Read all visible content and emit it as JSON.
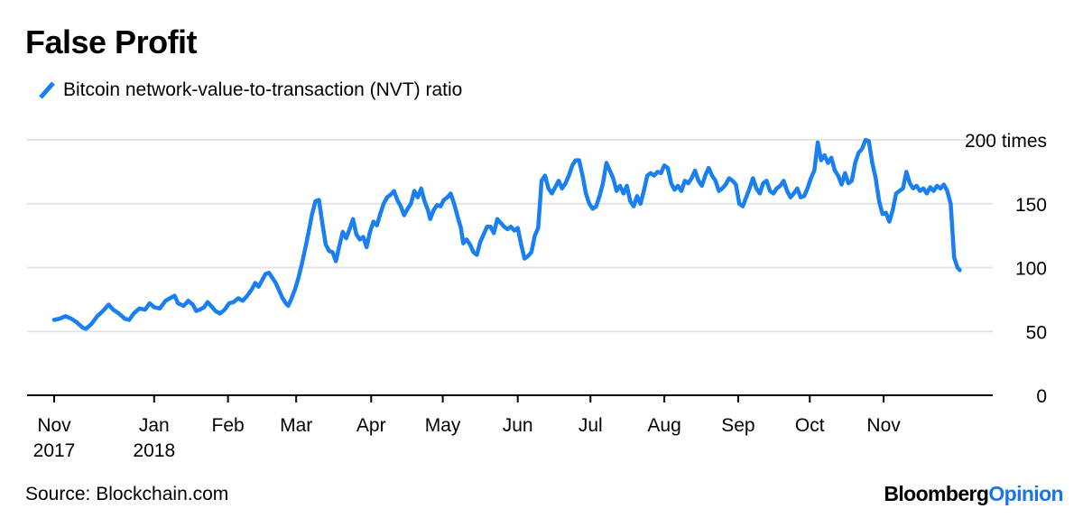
{
  "chart_data": {
    "type": "line",
    "title": "False Profit",
    "series": [
      {
        "name": "Bitcoin network-value-to-transaction (NVT) ratio",
        "color": "#1a7ff0",
        "points": [
          [
            0,
            59
          ],
          [
            5,
            60
          ],
          [
            10,
            62
          ],
          [
            15,
            60
          ],
          [
            20,
            57
          ],
          [
            25,
            53
          ],
          [
            28,
            52
          ],
          [
            33,
            56
          ],
          [
            38,
            62
          ],
          [
            43,
            66
          ],
          [
            48,
            71
          ],
          [
            52,
            67
          ],
          [
            57,
            64
          ],
          [
            62,
            60
          ],
          [
            66,
            59
          ],
          [
            70,
            64
          ],
          [
            75,
            68
          ],
          [
            80,
            67
          ],
          [
            84,
            72
          ],
          [
            88,
            69
          ],
          [
            93,
            68
          ],
          [
            98,
            74
          ],
          [
            102,
            76
          ],
          [
            106,
            78
          ],
          [
            109,
            72
          ],
          [
            114,
            70
          ],
          [
            118,
            74
          ],
          [
            122,
            71
          ],
          [
            125,
            66
          ],
          [
            128,
            67
          ],
          [
            132,
            69
          ],
          [
            135,
            73
          ],
          [
            138,
            70
          ],
          [
            142,
            66
          ],
          [
            146,
            64
          ],
          [
            150,
            67
          ],
          [
            154,
            72
          ],
          [
            158,
            73
          ],
          [
            162,
            76
          ],
          [
            166,
            74
          ],
          [
            170,
            78
          ],
          [
            174,
            83
          ],
          [
            177,
            88
          ],
          [
            180,
            85
          ],
          [
            183,
            90
          ],
          [
            186,
            95
          ],
          [
            189,
            96
          ],
          [
            192,
            92
          ],
          [
            195,
            88
          ],
          [
            198,
            82
          ],
          [
            201,
            76
          ],
          [
            204,
            72
          ],
          [
            206,
            70
          ],
          [
            209,
            76
          ],
          [
            212,
            83
          ],
          [
            215,
            92
          ],
          [
            218,
            103
          ],
          [
            221,
            115
          ],
          [
            224,
            128
          ],
          [
            227,
            142
          ],
          [
            230,
            152
          ],
          [
            233,
            153
          ],
          [
            236,
            135
          ],
          [
            239,
            118
          ],
          [
            242,
            113
          ],
          [
            245,
            112
          ],
          [
            248,
            105
          ],
          [
            251,
            117
          ],
          [
            254,
            128
          ],
          [
            257,
            123
          ],
          [
            260,
            130
          ],
          [
            263,
            138
          ],
          [
            266,
            126
          ],
          [
            269,
            122
          ],
          [
            272,
            124
          ],
          [
            275,
            116
          ],
          [
            278,
            128
          ],
          [
            281,
            136
          ],
          [
            284,
            133
          ],
          [
            287,
            142
          ],
          [
            290,
            150
          ],
          [
            293,
            155
          ],
          [
            296,
            157
          ],
          [
            299,
            160
          ],
          [
            302,
            153
          ],
          [
            305,
            148
          ],
          [
            308,
            141
          ],
          [
            311,
            146
          ],
          [
            314,
            150
          ],
          [
            317,
            160
          ],
          [
            320,
            155
          ],
          [
            323,
            162
          ],
          [
            326,
            152
          ],
          [
            329,
            145
          ],
          [
            331,
            138
          ],
          [
            334,
            145
          ],
          [
            337,
            149
          ],
          [
            340,
            148
          ],
          [
            343,
            153
          ],
          [
            346,
            155
          ],
          [
            349,
            158
          ],
          [
            352,
            150
          ],
          [
            355,
            140
          ],
          [
            358,
            131
          ],
          [
            360,
            119
          ],
          [
            363,
            122
          ],
          [
            366,
            118
          ],
          [
            369,
            112
          ],
          [
            372,
            110
          ],
          [
            375,
            120
          ],
          [
            378,
            126
          ],
          [
            381,
            132
          ],
          [
            384,
            132
          ],
          [
            387,
            127
          ],
          [
            390,
            138
          ],
          [
            393,
            135
          ],
          [
            396,
            132
          ],
          [
            399,
            130
          ],
          [
            402,
            132
          ],
          [
            405,
            129
          ],
          [
            408,
            131
          ],
          [
            411,
            118
          ],
          [
            414,
            107
          ],
          [
            417,
            109
          ],
          [
            420,
            112
          ],
          [
            423,
            125
          ],
          [
            426,
            131
          ],
          [
            429,
            168
          ],
          [
            432,
            172
          ],
          [
            435,
            162
          ],
          [
            438,
            158
          ],
          [
            441,
            163
          ],
          [
            444,
            168
          ],
          [
            447,
            162
          ],
          [
            450,
            166
          ],
          [
            453,
            172
          ],
          [
            456,
            180
          ],
          [
            459,
            184
          ],
          [
            462,
            184
          ],
          [
            465,
            172
          ],
          [
            468,
            158
          ],
          [
            471,
            150
          ],
          [
            474,
            146
          ],
          [
            477,
            148
          ],
          [
            480,
            156
          ],
          [
            483,
            166
          ],
          [
            486,
            182
          ],
          [
            489,
            176
          ],
          [
            492,
            170
          ],
          [
            495,
            160
          ],
          [
            498,
            164
          ],
          [
            501,
            158
          ],
          [
            504,
            164
          ],
          [
            507,
            152
          ],
          [
            510,
            148
          ],
          [
            513,
            156
          ],
          [
            516,
            150
          ],
          [
            519,
            160
          ],
          [
            522,
            172
          ],
          [
            525,
            174
          ],
          [
            528,
            172
          ],
          [
            531,
            175
          ],
          [
            534,
            174
          ],
          [
            537,
            180
          ],
          [
            540,
            178
          ],
          [
            543,
            166
          ],
          [
            546,
            161
          ],
          [
            549,
            164
          ],
          [
            552,
            160
          ],
          [
            555,
            168
          ],
          [
            558,
            166
          ],
          [
            561,
            170
          ],
          [
            564,
            176
          ],
          [
            567,
            168
          ],
          [
            570,
            164
          ],
          [
            573,
            172
          ],
          [
            576,
            178
          ],
          [
            579,
            172
          ],
          [
            582,
            168
          ],
          [
            585,
            160
          ],
          [
            588,
            162
          ],
          [
            591,
            165
          ],
          [
            594,
            170
          ],
          [
            597,
            168
          ],
          [
            600,
            165
          ],
          [
            603,
            150
          ],
          [
            606,
            148
          ],
          [
            609,
            155
          ],
          [
            612,
            162
          ],
          [
            615,
            170
          ],
          [
            618,
            162
          ],
          [
            621,
            158
          ],
          [
            624,
            166
          ],
          [
            627,
            168
          ],
          [
            630,
            160
          ],
          [
            633,
            158
          ],
          [
            636,
            162
          ],
          [
            639,
            164
          ],
          [
            642,
            168
          ],
          [
            645,
            160
          ],
          [
            648,
            155
          ],
          [
            651,
            158
          ],
          [
            654,
            162
          ],
          [
            657,
            155
          ],
          [
            660,
            156
          ],
          [
            663,
            162
          ],
          [
            666,
            170
          ],
          [
            669,
            176
          ],
          [
            672,
            198
          ],
          [
            675,
            184
          ],
          [
            678,
            188
          ],
          [
            681,
            182
          ],
          [
            684,
            186
          ],
          [
            687,
            176
          ],
          [
            690,
            172
          ],
          [
            693,
            165
          ],
          [
            696,
            174
          ],
          [
            699,
            166
          ],
          [
            702,
            168
          ],
          [
            705,
            182
          ],
          [
            708,
            190
          ],
          [
            711,
            193
          ],
          [
            714,
            200
          ],
          [
            717,
            199
          ],
          [
            720,
            182
          ],
          [
            723,
            170
          ],
          [
            726,
            152
          ],
          [
            729,
            142
          ],
          [
            732,
            143
          ],
          [
            735,
            136
          ],
          [
            738,
            145
          ],
          [
            741,
            158
          ],
          [
            744,
            160
          ],
          [
            747,
            162
          ],
          [
            750,
            175
          ],
          [
            753,
            166
          ],
          [
            756,
            162
          ],
          [
            759,
            164
          ],
          [
            762,
            160
          ],
          [
            765,
            162
          ],
          [
            768,
            158
          ],
          [
            771,
            163
          ],
          [
            774,
            160
          ],
          [
            777,
            164
          ],
          [
            780,
            162
          ],
          [
            783,
            165
          ],
          [
            786,
            160
          ],
          [
            789,
            150
          ],
          [
            792,
            108
          ],
          [
            795,
            100
          ],
          [
            797,
            98
          ]
        ]
      }
    ],
    "x_domain": [
      0,
      830
    ],
    "xticks": [
      {
        "pos": 0,
        "label": "Nov",
        "sublabel": "2017"
      },
      {
        "pos": 88,
        "label": "Jan",
        "sublabel": "2018"
      },
      {
        "pos": 153,
        "label": "Feb",
        "sublabel": ""
      },
      {
        "pos": 213,
        "label": "Mar",
        "sublabel": ""
      },
      {
        "pos": 279,
        "label": "Apr",
        "sublabel": ""
      },
      {
        "pos": 342,
        "label": "May",
        "sublabel": ""
      },
      {
        "pos": 408,
        "label": "Jun",
        "sublabel": ""
      },
      {
        "pos": 472,
        "label": "Jul",
        "sublabel": ""
      },
      {
        "pos": 537,
        "label": "Aug",
        "sublabel": ""
      },
      {
        "pos": 602,
        "label": "Sep",
        "sublabel": ""
      },
      {
        "pos": 665,
        "label": "Oct",
        "sublabel": ""
      },
      {
        "pos": 730,
        "label": "Nov",
        "sublabel": ""
      }
    ],
    "yticks": [
      {
        "value": 0,
        "label": "0"
      },
      {
        "value": 50,
        "label": "50"
      },
      {
        "value": 100,
        "label": "100"
      },
      {
        "value": 150,
        "label": "150"
      },
      {
        "value": 200,
        "label": "200 times"
      }
    ],
    "ylim": [
      0,
      200
    ],
    "grid": true
  },
  "footer": {
    "source": "Source: Blockchain.com",
    "brand_main": "Bloomberg",
    "brand_accent": "Opinion"
  }
}
